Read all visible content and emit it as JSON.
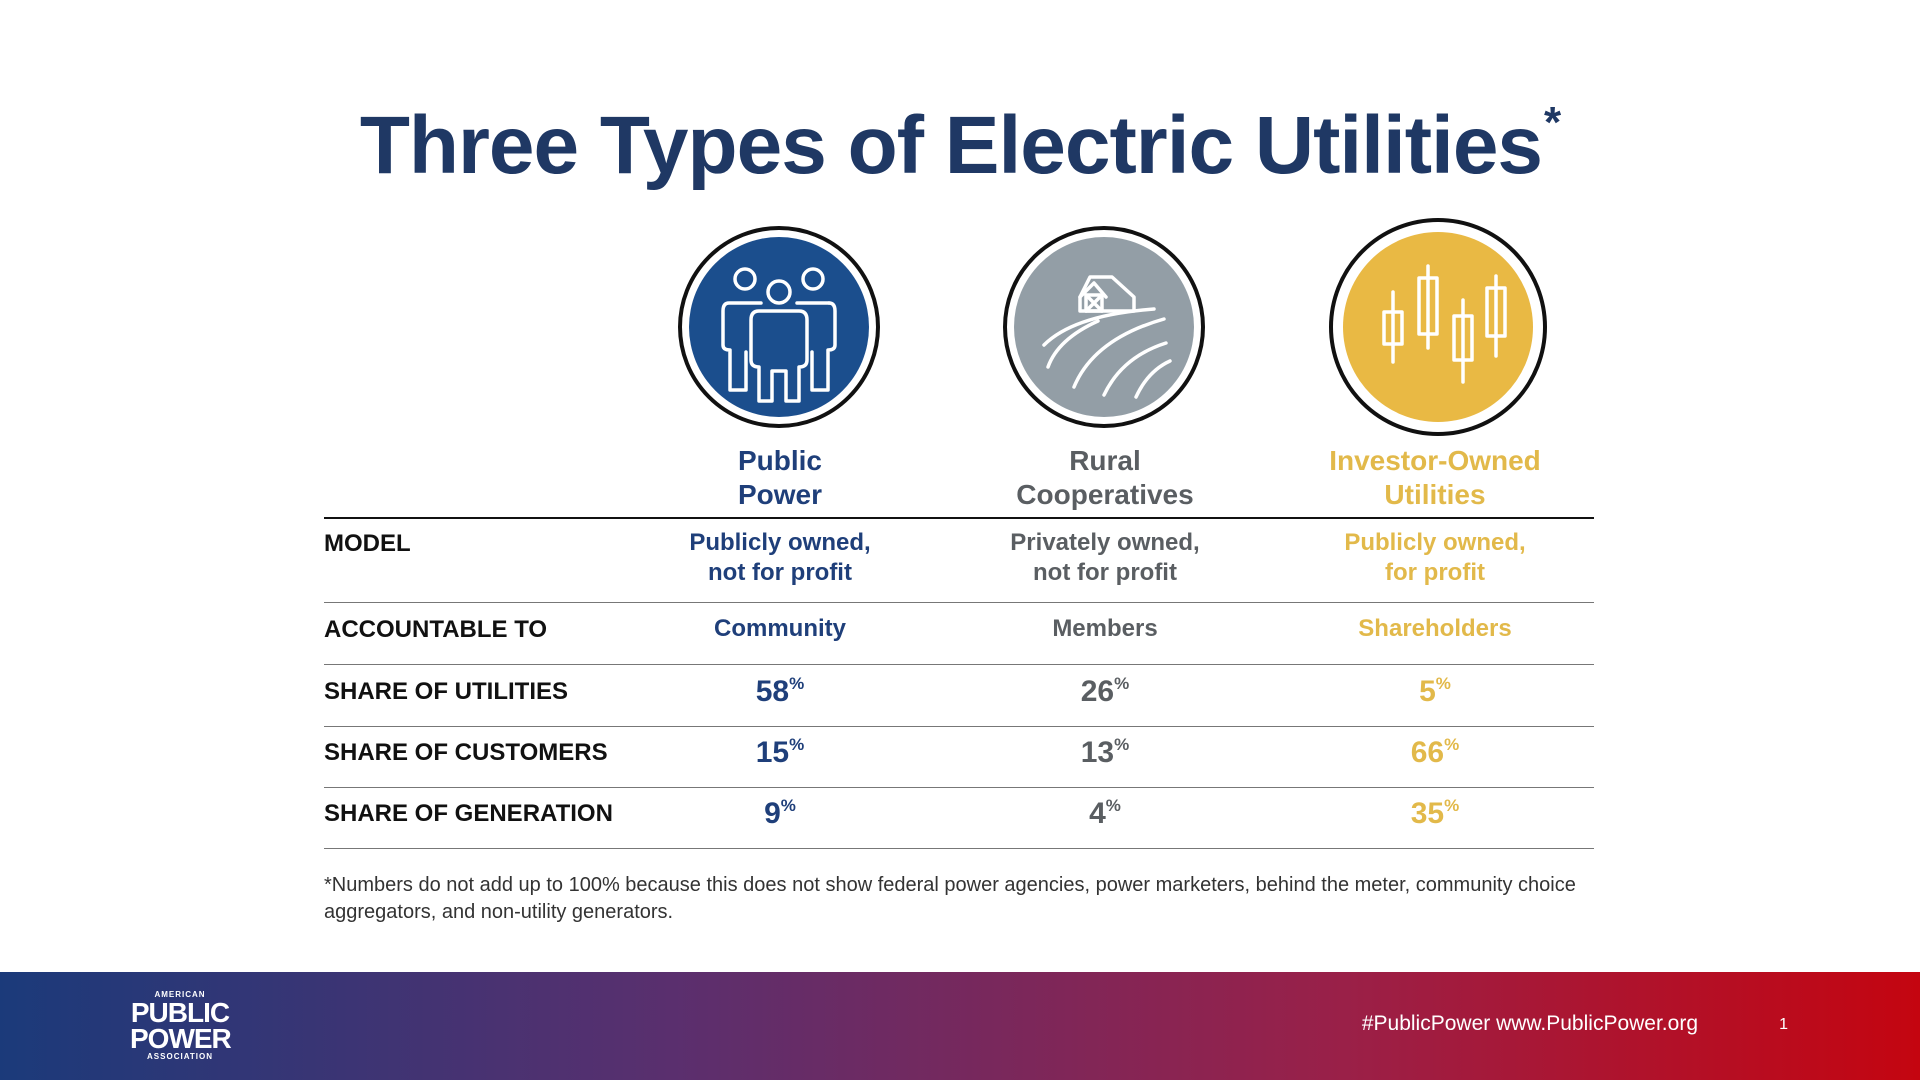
{
  "title": "Three Types of Electric Utilities",
  "title_mark": "*",
  "columns": [
    {
      "key": "public",
      "icon": "people-icon",
      "head_line1": "Public",
      "head_line2": "Power",
      "color": "#1f3f7a",
      "circle": "#1b4e8d"
    },
    {
      "key": "rural",
      "icon": "farm-icon",
      "head_line1": "Rural",
      "head_line2": "Cooperatives",
      "color": "#5a5e62",
      "circle": "#939ea6"
    },
    {
      "key": "investor",
      "icon": "candlestick-chart-icon",
      "head_line1": "Investor-Owned",
      "head_line2": "Utilities",
      "color": "#e2b94a",
      "circle": "#e9b944"
    }
  ],
  "rows": {
    "model": {
      "label": "MODEL",
      "values": [
        {
          "line1": "Publicly owned,",
          "line2": "not for profit"
        },
        {
          "line1": "Privately owned,",
          "line2": "not for profit"
        },
        {
          "line1": "Publicly owned,",
          "line2": "for profit"
        }
      ]
    },
    "accountable": {
      "label": "ACCOUNTABLE TO",
      "values": [
        "Community",
        "Members",
        "Shareholders"
      ]
    },
    "utilities": {
      "label": "SHARE OF UTILITIES",
      "values": [
        "58",
        "26",
        "5"
      ]
    },
    "customers": {
      "label": "SHARE OF CUSTOMERS",
      "values": [
        "15",
        "13",
        "66"
      ]
    },
    "generation": {
      "label": "SHARE OF GENERATION",
      "values": [
        "9",
        "4",
        "35"
      ]
    }
  },
  "percent_sign": "%",
  "footnote": "*Numbers do not add up to 100% because this does not show federal power agencies, power marketers, behind the meter, community choice aggregators, and non-utility generators.",
  "footer": {
    "logo_top": "AMERICAN",
    "logo_line1": "PUBLIC",
    "logo_line2": "POWER",
    "logo_bottom": "ASSOCIATION",
    "links": "#PublicPower  www.PublicPower.org",
    "page_number": "1"
  }
}
